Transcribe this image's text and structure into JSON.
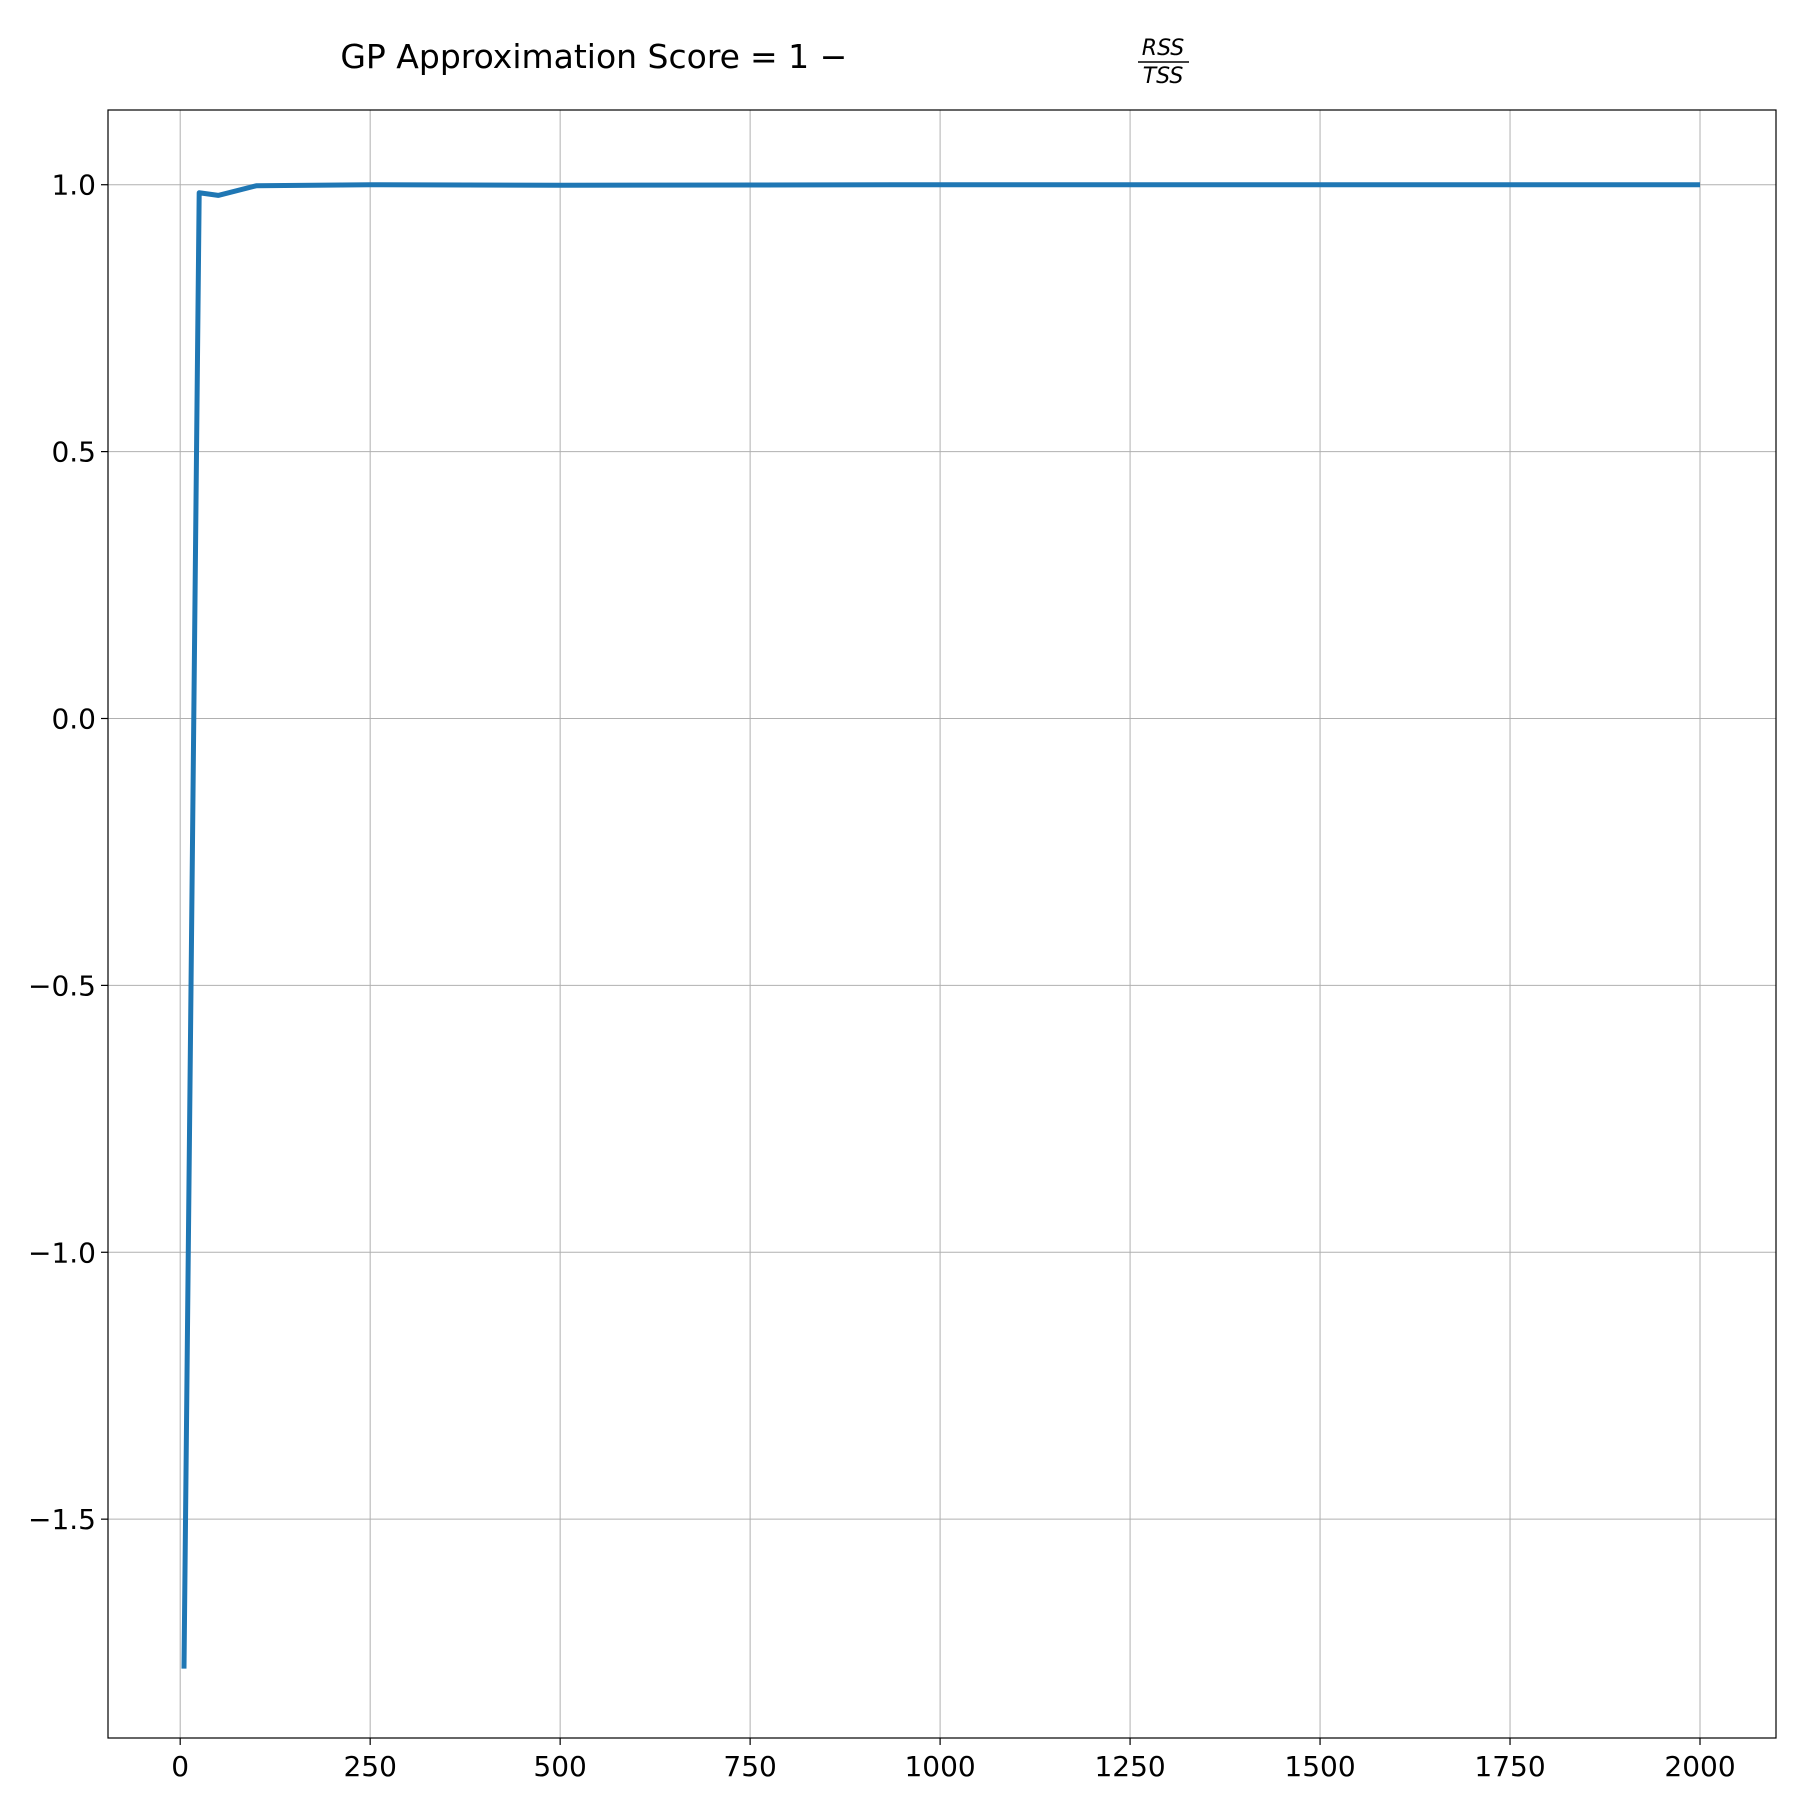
{
  "chart_data": {
    "type": "line",
    "title": {
      "prefix": "GP Approximation Score",
      "equation": "= 1 −",
      "numerator": "RSS",
      "denominator": "TSS"
    },
    "xlabel": "",
    "ylabel": "",
    "xlim": [
      -95,
      2100
    ],
    "ylim": [
      -1.91,
      1.14
    ],
    "x_ticks": [
      0,
      250,
      500,
      750,
      1000,
      1250,
      1500,
      1750,
      2000
    ],
    "x_tick_labels": [
      "0",
      "250",
      "500",
      "750",
      "1000",
      "1250",
      "1500",
      "1750",
      "2000"
    ],
    "y_ticks": [
      1.0,
      0.5,
      0.0,
      -0.5,
      -1.0,
      -1.5
    ],
    "y_tick_labels": [
      "1.0",
      "0.5",
      "0.0",
      "−0.5",
      "−1.0",
      "−1.5"
    ],
    "grid": true,
    "series": [
      {
        "color": "#1f77b4",
        "x": [
          5,
          25,
          50,
          100,
          250,
          500,
          1000,
          1500,
          2000
        ],
        "y": [
          -1.78,
          0.985,
          0.98,
          0.998,
          1.0,
          0.999,
          1.0,
          1.0,
          1.0
        ]
      }
    ]
  },
  "colors": {
    "line": "#1f77b4",
    "grid": "#b0b0b0",
    "axes": "#000000"
  }
}
